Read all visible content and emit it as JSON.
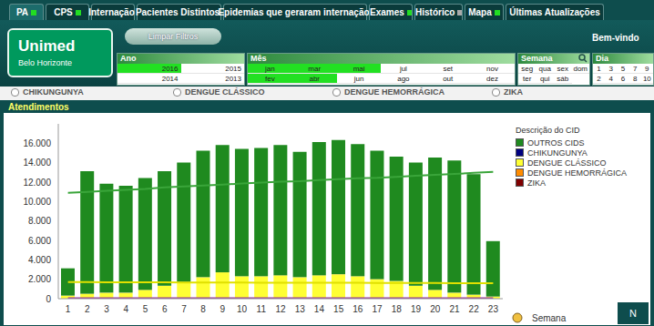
{
  "tabs": [
    {
      "label": "PA",
      "color": "#22dd22"
    },
    {
      "label": "CPS",
      "color": "#22dd22"
    },
    {
      "label": "Internação",
      "color": "#22dd22"
    },
    {
      "label": "Pacientes Distintos",
      "color": "#aaaaaa"
    },
    {
      "label": "Epidemias que geraram internação",
      "color": "#22dd22"
    },
    {
      "label": "Exames",
      "color": "#22dd22"
    },
    {
      "label": "Histórico",
      "color": "#aaaaaa"
    },
    {
      "label": "Mapa",
      "color": "#22dd22"
    },
    {
      "label": "Últimas Atualizações",
      "color": null
    }
  ],
  "logo": {
    "name": "Unimed",
    "subtitle": "Belo Horizonte"
  },
  "button": "Limpar Filtros",
  "welcome": "Bem-vindo",
  "filters": [
    {
      "title": "Ano",
      "rows": [
        [
          {
            "label": "2016",
            "selected": true
          },
          {
            "label": "2015",
            "selected": false
          }
        ],
        [
          {
            "label": "2014",
            "selected": false
          },
          {
            "label": "2013",
            "selected": false
          }
        ]
      ]
    },
    {
      "title": "Mês",
      "rows": [
        [
          {
            "label": "jan",
            "selected": true
          },
          {
            "label": "mar",
            "selected": true
          },
          {
            "label": "mai",
            "selected": true
          },
          {
            "label": "jul",
            "selected": false
          },
          {
            "label": "set",
            "selected": false
          },
          {
            "label": "nov",
            "selected": false
          }
        ],
        [
          {
            "label": "fev",
            "selected": true
          },
          {
            "label": "abr",
            "selected": true
          },
          {
            "label": "jun",
            "selected": false
          },
          {
            "label": "ago",
            "selected": false
          },
          {
            "label": "out",
            "selected": false
          },
          {
            "label": "dez",
            "selected": false
          }
        ]
      ]
    },
    {
      "title": "Semana",
      "rows": [
        [
          {
            "label": "seg",
            "selected": false
          },
          {
            "label": "qua",
            "selected": false
          },
          {
            "label": "sex",
            "selected": false
          },
          {
            "label": "dom",
            "selected": false
          }
        ],
        [
          {
            "label": "ter",
            "selected": false
          },
          {
            "label": "qui",
            "selected": false
          },
          {
            "label": "sáb",
            "selected": false
          }
        ]
      ]
    },
    {
      "title": "Dia",
      "rows": [
        [
          {
            "label": "1",
            "selected": false
          },
          {
            "label": "3",
            "selected": false
          },
          {
            "label": "5",
            "selected": false
          },
          {
            "label": "7",
            "selected": false
          },
          {
            "label": "9",
            "selected": false
          }
        ],
        [
          {
            "label": "2",
            "selected": false
          },
          {
            "label": "4",
            "selected": false
          },
          {
            "label": "6",
            "selected": false
          },
          {
            "label": "8",
            "selected": false
          },
          {
            "label": "10",
            "selected": false
          }
        ]
      ]
    }
  ],
  "radios": [
    "CHIKUNGUNYA",
    "DENGUE CLÁSSICO",
    "DENGUE HEMORRÁGICA",
    "ZIKA"
  ],
  "corner_button": "N",
  "chart_data": {
    "type": "bar",
    "title": "Atendimentos",
    "legend_title": "Descrição do CID",
    "x_label": "Semana",
    "stacked": true,
    "grid": false,
    "legend": "right",
    "categories": [
      "1",
      "2",
      "3",
      "4",
      "5",
      "6",
      "7",
      "8",
      "9",
      "10",
      "11",
      "12",
      "13",
      "14",
      "15",
      "16",
      "17",
      "18",
      "19",
      "20",
      "21",
      "22",
      "23"
    ],
    "ylim": [
      0,
      18000
    ],
    "yticks": [
      0,
      {
        "value": 2000,
        "label": "2.000"
      },
      {
        "value": 4000,
        "label": "4.000"
      },
      {
        "value": 6000,
        "label": "6.000"
      },
      {
        "value": 8000,
        "label": "8.000"
      },
      {
        "value": 10000,
        "label": "10.000"
      },
      {
        "value": 12000,
        "label": "12.000"
      },
      {
        "value": 14000,
        "label": "14.000"
      },
      {
        "value": 16000,
        "label": "16.000"
      }
    ],
    "series": [
      {
        "name": "OUTROS CIDS",
        "color": "#1f8a1f",
        "values": [
          2800,
          12600,
          11200,
          11000,
          11500,
          11800,
          12300,
          13000,
          13100,
          13100,
          13200,
          13400,
          12900,
          13700,
          13800,
          13600,
          13200,
          12800,
          12700,
          13600,
          13600,
          12400,
          5700
        ]
      },
      {
        "name": "CHIKUNGUNYA",
        "color": "#000080",
        "values": [
          10,
          10,
          10,
          10,
          10,
          10,
          10,
          10,
          10,
          10,
          10,
          10,
          10,
          10,
          10,
          10,
          10,
          10,
          10,
          10,
          10,
          10,
          10
        ]
      },
      {
        "name": "DENGUE CLÁSSICO",
        "color": "#ffff33",
        "values": [
          300,
          500,
          600,
          600,
          900,
          1300,
          1700,
          2200,
          2700,
          2300,
          2300,
          2400,
          2200,
          2400,
          2500,
          2300,
          2000,
          1800,
          1300,
          900,
          600,
          400,
          200
        ]
      },
      {
        "name": "DENGUE HEMORRÁGICA",
        "color": "#ff8c00",
        "values": [
          5,
          5,
          5,
          5,
          5,
          5,
          5,
          5,
          5,
          5,
          5,
          5,
          5,
          5,
          5,
          5,
          5,
          5,
          5,
          5,
          5,
          5,
          5
        ]
      },
      {
        "name": "ZIKA",
        "color": "#800000",
        "values": [
          10,
          10,
          10,
          10,
          10,
          10,
          10,
          10,
          10,
          10,
          10,
          10,
          10,
          10,
          10,
          10,
          10,
          10,
          10,
          10,
          10,
          10,
          10
        ]
      }
    ],
    "trend_lines": [
      {
        "color": "#3aa53a",
        "values": [
          10900,
          11000,
          11100,
          11200,
          11300,
          11450,
          11550,
          11650,
          11750,
          11850,
          11950,
          12050,
          12100,
          12200,
          12300,
          12400,
          12450,
          12550,
          12650,
          12750,
          12850,
          12950,
          13050
        ]
      },
      {
        "color": "#e0e000",
        "values": [
          1700,
          1700,
          1690,
          1690,
          1680,
          1680,
          1670,
          1670,
          1660,
          1660,
          1650,
          1650,
          1640,
          1640,
          1630,
          1630,
          1620,
          1620,
          1610,
          1610,
          1600,
          1600,
          1600
        ]
      },
      {
        "color": "#993399",
        "values": [
          50,
          50,
          50,
          50,
          50,
          50,
          50,
          50,
          50,
          50,
          50,
          50,
          50,
          50,
          50,
          50,
          50,
          50,
          50,
          50,
          50,
          50,
          50
        ]
      }
    ]
  }
}
